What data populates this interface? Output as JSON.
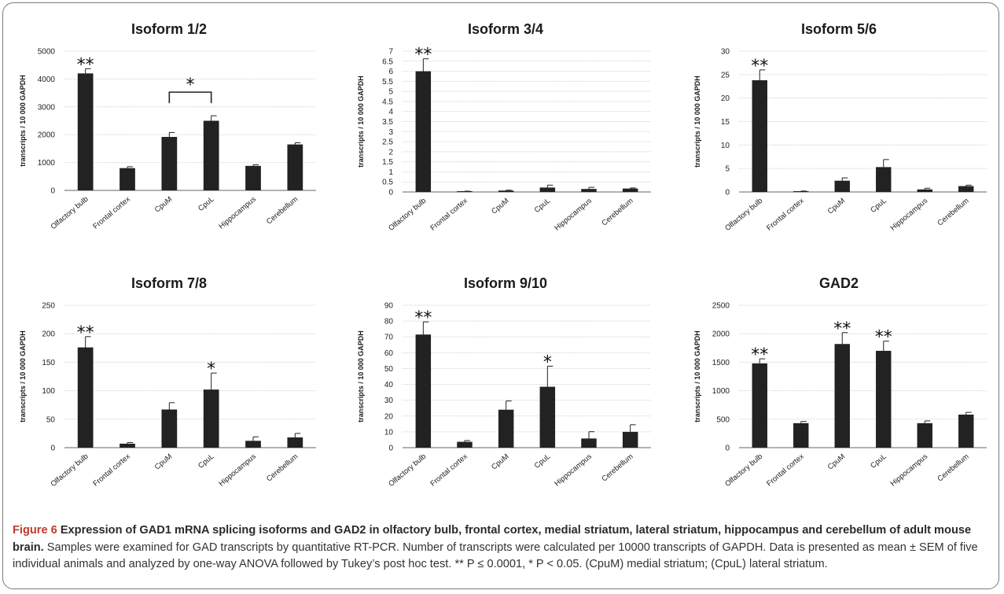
{
  "chart_data": [
    {
      "type": "bar",
      "title": "Isoform 1/2",
      "ylabel": "transcripts / 10 000 GAPDH",
      "categories": [
        "Olfactory bulb",
        "Frontal cortex",
        "CpuM",
        "CpuL",
        "Hippocampus",
        "Cerebellum"
      ],
      "values": [
        4200,
        800,
        1920,
        2500,
        880,
        1650
      ],
      "errors": [
        170,
        50,
        160,
        180,
        40,
        60
      ],
      "ylim": [
        0,
        5000
      ],
      "yticks": [
        0,
        1000,
        2000,
        3000,
        4000,
        5000
      ],
      "ytick_labels": [
        "0",
        "1000",
        "2000",
        "3000",
        "4000",
        "5000"
      ],
      "annotations": [
        {
          "category": 0,
          "text": "**"
        }
      ],
      "brackets": [
        {
          "from": 2,
          "to": 3,
          "text": "*"
        }
      ],
      "grid": true
    },
    {
      "type": "bar",
      "title": "Isoform 3/4",
      "ylabel": "transcripts / 10 000 GAPDH",
      "categories": [
        "Olfactory bulb",
        "Frontal cortex",
        "CpuM",
        "CpuL",
        "Hippocampus",
        "Cerebellum"
      ],
      "values": [
        6.0,
        0.02,
        0.07,
        0.22,
        0.15,
        0.17
      ],
      "errors": [
        0.62,
        0.02,
        0.02,
        0.12,
        0.08,
        0.03
      ],
      "ylim": [
        0,
        7
      ],
      "yticks": [
        0,
        0.5,
        1,
        1.5,
        2,
        2.5,
        3,
        3.5,
        4,
        4.5,
        5,
        5.5,
        6,
        6.5,
        7
      ],
      "ytick_labels": [
        "0",
        "0.5",
        "1",
        "1.5",
        "2",
        "2.5",
        "3",
        "3.5",
        "4",
        "4.5",
        "5",
        "5.5",
        "6",
        "6.5",
        "7"
      ],
      "annotations": [
        {
          "category": 0,
          "text": "**"
        }
      ],
      "brackets": [],
      "grid": true
    },
    {
      "type": "bar",
      "title": "Isoform 5/6",
      "ylabel": "transcripts / 10 000 GAPDH",
      "categories": [
        "Olfactory bulb",
        "Frontal cortex",
        "CpuM",
        "CpuL",
        "Hippocampus",
        "Cerebellum"
      ],
      "values": [
        23.8,
        0.15,
        2.4,
        5.3,
        0.55,
        1.25
      ],
      "errors": [
        2.2,
        0.05,
        0.6,
        1.6,
        0.25,
        0.2
      ],
      "ylim": [
        0,
        30
      ],
      "yticks": [
        0,
        5,
        10,
        15,
        20,
        25,
        30
      ],
      "ytick_labels": [
        "0",
        "5",
        "10",
        "15",
        "20",
        "25",
        "30"
      ],
      "annotations": [
        {
          "category": 0,
          "text": "**"
        }
      ],
      "brackets": [],
      "grid": true
    },
    {
      "type": "bar",
      "title": "Isoform 7/8",
      "ylabel": "transcripts / 10 000 GAPDH",
      "categories": [
        "Olfactory bulb",
        "Frontal cortex",
        "CpuM",
        "CpuL",
        "Hippocampus",
        "Cerebellum"
      ],
      "values": [
        176,
        7,
        67,
        102,
        12,
        18
      ],
      "errors": [
        19,
        2,
        12,
        29,
        7,
        7
      ],
      "ylim": [
        0,
        250
      ],
      "yticks": [
        0,
        50,
        100,
        150,
        200,
        250
      ],
      "ytick_labels": [
        "0",
        "50",
        "100",
        "150",
        "200",
        "250"
      ],
      "annotations": [
        {
          "category": 0,
          "text": "**"
        },
        {
          "category": 3,
          "text": "*"
        }
      ],
      "brackets": [],
      "grid": true
    },
    {
      "type": "bar",
      "title": "Isoform 9/10",
      "ylabel": "transcripts / 10 000 GAPDH",
      "categories": [
        "Olfactory bulb",
        "Frontal cortex",
        "CpuM",
        "CpuL",
        "Hippocampus",
        "Cerebellum"
      ],
      "values": [
        71.5,
        3.7,
        24,
        38.5,
        5.8,
        10
      ],
      "errors": [
        8,
        0.8,
        5.5,
        13,
        4.3,
        4.5
      ],
      "ylim": [
        0,
        90
      ],
      "yticks": [
        0,
        10,
        20,
        30,
        40,
        50,
        60,
        70,
        80,
        90
      ],
      "ytick_labels": [
        "0",
        "10",
        "20",
        "30",
        "40",
        "50",
        "60",
        "70",
        "80",
        "90"
      ],
      "annotations": [
        {
          "category": 0,
          "text": "**"
        },
        {
          "category": 3,
          "text": "*"
        }
      ],
      "brackets": [],
      "grid": true
    },
    {
      "type": "bar",
      "title": "GAD2",
      "ylabel": "transcripts / 10 000 GAPDH",
      "categories": [
        "Olfactory bulb",
        "Frontal cortex",
        "CpuM",
        "CpuL",
        "Hippocampus",
        "Cerebellum"
      ],
      "values": [
        1480,
        430,
        1820,
        1700,
        430,
        580
      ],
      "errors": [
        80,
        30,
        200,
        170,
        40,
        40
      ],
      "ylim": [
        0,
        2500
      ],
      "yticks": [
        0,
        500,
        1000,
        1500,
        2000,
        2500
      ],
      "ytick_labels": [
        "0",
        "500",
        "1000",
        "1500",
        "2000",
        "2500"
      ],
      "annotations": [
        {
          "category": 0,
          "text": "**"
        },
        {
          "category": 2,
          "text": "**"
        },
        {
          "category": 3,
          "text": "**"
        }
      ],
      "brackets": [],
      "grid": true
    }
  ],
  "caption": {
    "label": "Figure 6",
    "bold_title": "Expression of GAD1 mRNA splicing isoforms and GAD2 in olfactory bulb, frontal cortex, medial striatum, lateral striatum, hippocampus and cerebellum of adult mouse brain.",
    "text": "Samples were examined for GAD transcripts by quantitative RT-PCR. Number of transcripts were calculated per 10000 transcripts of GAPDH. Data is presented as mean ± SEM of five individual animals and analyzed by one-way ANOVA followed by Tukey’s post hoc test. ** P ≤ 0.0001, * P < 0.05. (CpuM) medial striatum; (CpuL) lateral striatum."
  },
  "colors": {
    "bar": "#222222",
    "grid": "#d0d0d0",
    "axis": "#666666",
    "frame": "#7a7a7a",
    "caption_label": "#c0392b"
  }
}
